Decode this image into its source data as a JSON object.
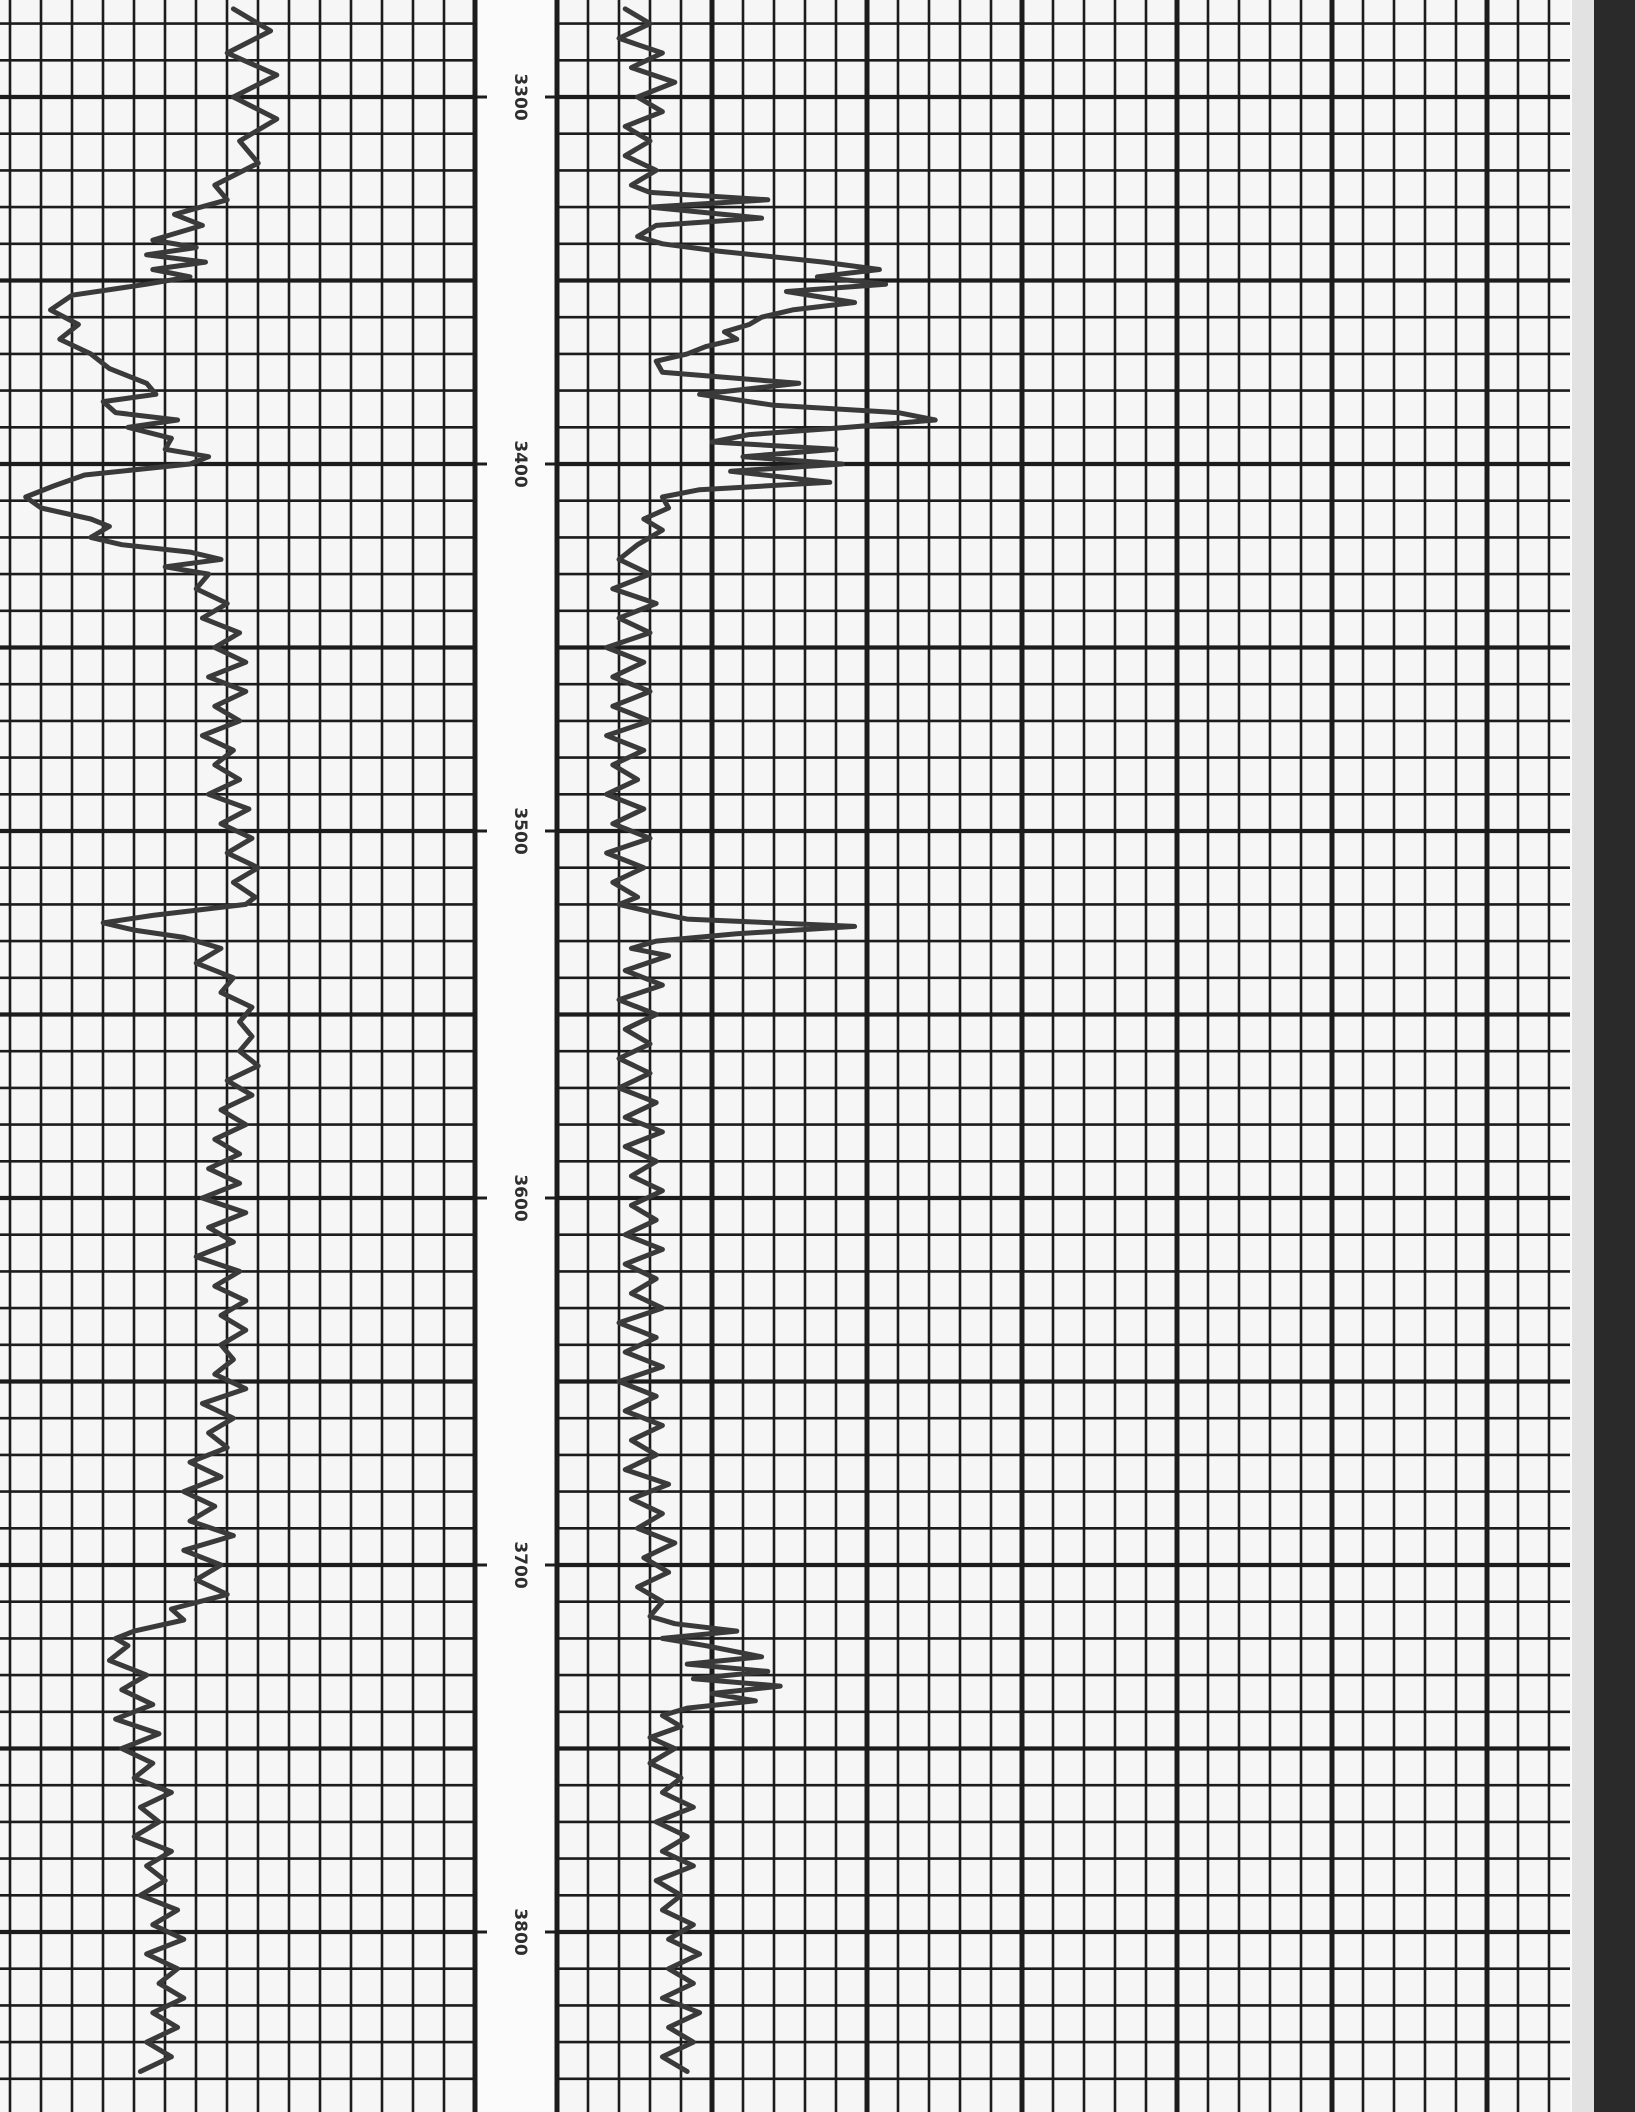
{
  "chart_data": {
    "type": "line",
    "title": "",
    "xlabel": "",
    "ylabel": "",
    "depth_axis": {
      "printed_labels": [
        "3300",
        "3400",
        "3500",
        "3600",
        "3700",
        "3800"
      ],
      "range": [
        3274,
        3840
      ],
      "orientation": "vertical, increasing downward, labels rotated"
    },
    "tracks": [
      {
        "track": "left",
        "scale_units": "grid divisions",
        "points": [
          [
            3276,
            7.4
          ],
          [
            3282,
            8.6
          ],
          [
            3288,
            7.2
          ],
          [
            3294,
            8.8
          ],
          [
            3300,
            7.4
          ],
          [
            3306,
            8.8
          ],
          [
            3312,
            7.6
          ],
          [
            3318,
            8.2
          ],
          [
            3324,
            6.8
          ],
          [
            3328,
            7.2
          ],
          [
            3332,
            5.5
          ],
          [
            3335,
            6.4
          ],
          [
            3339,
            4.8
          ],
          [
            3341,
            6.2
          ],
          [
            3343,
            4.6
          ],
          [
            3345,
            6.5
          ],
          [
            3347,
            4.8
          ],
          [
            3349,
            6.0
          ],
          [
            3351,
            4.6
          ],
          [
            3354,
            2.2
          ],
          [
            3358,
            1.5
          ],
          [
            3362,
            2.4
          ],
          [
            3366,
            1.8
          ],
          [
            3370,
            2.8
          ],
          [
            3374,
            3.4
          ],
          [
            3378,
            4.6
          ],
          [
            3381,
            4.9
          ],
          [
            3383,
            3.2
          ],
          [
            3386,
            3.6
          ],
          [
            3388,
            5.6
          ],
          [
            3390,
            4.0
          ],
          [
            3393,
            5.4
          ],
          [
            3396,
            5.2
          ],
          [
            3398,
            6.6
          ],
          [
            3400,
            6.0
          ],
          [
            3403,
            2.6
          ],
          [
            3406,
            1.6
          ],
          [
            3409,
            0.7
          ],
          [
            3412,
            1.2
          ],
          [
            3415,
            2.8
          ],
          [
            3417,
            3.4
          ],
          [
            3420,
            2.8
          ],
          [
            3422,
            3.8
          ],
          [
            3424,
            6.0
          ],
          [
            3426,
            7.0
          ],
          [
            3428,
            5.2
          ],
          [
            3430,
            6.6
          ],
          [
            3434,
            6.2
          ],
          [
            3438,
            7.2
          ],
          [
            3442,
            6.4
          ],
          [
            3446,
            7.6
          ],
          [
            3450,
            6.8
          ],
          [
            3454,
            7.8
          ],
          [
            3458,
            6.6
          ],
          [
            3462,
            7.8
          ],
          [
            3466,
            6.8
          ],
          [
            3470,
            7.6
          ],
          [
            3474,
            6.4
          ],
          [
            3478,
            7.4
          ],
          [
            3482,
            6.8
          ],
          [
            3486,
            7.6
          ],
          [
            3490,
            6.6
          ],
          [
            3494,
            7.9
          ],
          [
            3498,
            7.0
          ],
          [
            3502,
            8.0
          ],
          [
            3506,
            7.2
          ],
          [
            3510,
            8.2
          ],
          [
            3514,
            7.4
          ],
          [
            3518,
            8.1
          ],
          [
            3520,
            7.8
          ],
          [
            3523,
            4.8
          ],
          [
            3525,
            3.2
          ],
          [
            3527,
            4.2
          ],
          [
            3529,
            5.8
          ],
          [
            3532,
            7.0
          ],
          [
            3536,
            6.2
          ],
          [
            3540,
            7.4
          ],
          [
            3544,
            7.0
          ],
          [
            3548,
            8.0
          ],
          [
            3552,
            7.6
          ],
          [
            3556,
            8.0
          ],
          [
            3560,
            7.6
          ],
          [
            3564,
            8.2
          ],
          [
            3568,
            7.2
          ],
          [
            3572,
            8.0
          ],
          [
            3576,
            7.0
          ],
          [
            3580,
            7.8
          ],
          [
            3584,
            6.8
          ],
          [
            3588,
            7.6
          ],
          [
            3592,
            6.6
          ],
          [
            3596,
            7.6
          ],
          [
            3600,
            6.4
          ],
          [
            3604,
            7.8
          ],
          [
            3608,
            6.6
          ],
          [
            3612,
            7.4
          ],
          [
            3616,
            6.2
          ],
          [
            3620,
            7.6
          ],
          [
            3624,
            6.8
          ],
          [
            3628,
            7.8
          ],
          [
            3632,
            7.0
          ],
          [
            3636,
            7.8
          ],
          [
            3640,
            7.0
          ],
          [
            3644,
            7.4
          ],
          [
            3648,
            6.8
          ],
          [
            3652,
            7.8
          ],
          [
            3656,
            6.4
          ],
          [
            3660,
            7.4
          ],
          [
            3664,
            6.6
          ],
          [
            3668,
            7.2
          ],
          [
            3672,
            6.0
          ],
          [
            3676,
            7.0
          ],
          [
            3680,
            5.8
          ],
          [
            3684,
            6.8
          ],
          [
            3688,
            6.0
          ],
          [
            3692,
            7.4
          ],
          [
            3696,
            5.8
          ],
          [
            3700,
            7.0
          ],
          [
            3704,
            6.2
          ],
          [
            3708,
            7.2
          ],
          [
            3712,
            5.4
          ],
          [
            3715,
            5.8
          ],
          [
            3718,
            4.2
          ],
          [
            3720,
            3.6
          ],
          [
            3722,
            4.0
          ],
          [
            3726,
            3.4
          ],
          [
            3730,
            4.6
          ],
          [
            3734,
            3.8
          ],
          [
            3738,
            4.8
          ],
          [
            3742,
            3.6
          ],
          [
            3746,
            5.0
          ],
          [
            3750,
            3.8
          ],
          [
            3754,
            4.8
          ],
          [
            3758,
            4.2
          ],
          [
            3762,
            5.4
          ],
          [
            3766,
            4.4
          ],
          [
            3770,
            5.0
          ],
          [
            3774,
            4.2
          ],
          [
            3778,
            5.4
          ],
          [
            3782,
            4.6
          ],
          [
            3786,
            5.2
          ],
          [
            3790,
            4.4
          ],
          [
            3794,
            5.6
          ],
          [
            3798,
            4.8
          ],
          [
            3802,
            5.8
          ],
          [
            3806,
            4.6
          ],
          [
            3810,
            5.6
          ],
          [
            3814,
            5.0
          ],
          [
            3818,
            5.8
          ],
          [
            3822,
            4.8
          ],
          [
            3826,
            5.6
          ],
          [
            3830,
            4.6
          ],
          [
            3834,
            5.4
          ],
          [
            3838,
            4.4
          ]
        ]
      },
      {
        "track": "right",
        "scale_units": "grid divisions",
        "points": [
          [
            3276,
            2.2
          ],
          [
            3280,
            3.0
          ],
          [
            3284,
            2.0
          ],
          [
            3288,
            3.4
          ],
          [
            3292,
            2.4
          ],
          [
            3296,
            3.8
          ],
          [
            3300,
            2.6
          ],
          [
            3304,
            3.4
          ],
          [
            3308,
            2.2
          ],
          [
            3312,
            3.0
          ],
          [
            3316,
            2.2
          ],
          [
            3320,
            3.2
          ],
          [
            3324,
            2.4
          ],
          [
            3326,
            3.0
          ],
          [
            3328,
            6.8
          ],
          [
            3330,
            3.0
          ],
          [
            3333,
            6.6
          ],
          [
            3335,
            3.2
          ],
          [
            3338,
            2.6
          ],
          [
            3340,
            3.4
          ],
          [
            3342,
            5.2
          ],
          [
            3345,
            8.6
          ],
          [
            3347,
            10.4
          ],
          [
            3349,
            8.4
          ],
          [
            3351,
            10.6
          ],
          [
            3353,
            7.4
          ],
          [
            3356,
            9.6
          ],
          [
            3358,
            7.6
          ],
          [
            3360,
            6.6
          ],
          [
            3362,
            6.2
          ],
          [
            3364,
            5.4
          ],
          [
            3366,
            5.8
          ],
          [
            3368,
            4.8
          ],
          [
            3370,
            4.2
          ],
          [
            3372,
            3.2
          ],
          [
            3375,
            3.4
          ],
          [
            3378,
            7.8
          ],
          [
            3381,
            4.6
          ],
          [
            3384,
            7.0
          ],
          [
            3386,
            11.0
          ],
          [
            3388,
            12.2
          ],
          [
            3390,
            9.4
          ],
          [
            3392,
            6.2
          ],
          [
            3394,
            5.0
          ],
          [
            3396,
            9.0
          ],
          [
            3398,
            6.0
          ],
          [
            3400,
            9.2
          ],
          [
            3402,
            5.6
          ],
          [
            3405,
            8.8
          ],
          [
            3407,
            4.6
          ],
          [
            3409,
            3.4
          ],
          [
            3412,
            3.6
          ],
          [
            3415,
            2.8
          ],
          [
            3418,
            3.4
          ],
          [
            3422,
            2.6
          ],
          [
            3426,
            2.0
          ],
          [
            3430,
            3.0
          ],
          [
            3434,
            1.8
          ],
          [
            3438,
            3.2
          ],
          [
            3442,
            2.0
          ],
          [
            3446,
            3.0
          ],
          [
            3450,
            1.6
          ],
          [
            3454,
            2.8
          ],
          [
            3458,
            1.8
          ],
          [
            3462,
            3.0
          ],
          [
            3466,
            1.8
          ],
          [
            3470,
            3.0
          ],
          [
            3474,
            1.6
          ],
          [
            3478,
            2.8
          ],
          [
            3482,
            1.8
          ],
          [
            3486,
            2.6
          ],
          [
            3490,
            1.6
          ],
          [
            3494,
            2.8
          ],
          [
            3498,
            1.8
          ],
          [
            3502,
            3.0
          ],
          [
            3506,
            1.6
          ],
          [
            3510,
            2.8
          ],
          [
            3514,
            1.8
          ],
          [
            3518,
            2.6
          ],
          [
            3520,
            2.0
          ],
          [
            3522,
            3.0
          ],
          [
            3524,
            4.2
          ],
          [
            3526,
            9.6
          ],
          [
            3528,
            5.8
          ],
          [
            3530,
            3.2
          ],
          [
            3532,
            2.4
          ],
          [
            3534,
            3.6
          ],
          [
            3538,
            2.2
          ],
          [
            3542,
            3.4
          ],
          [
            3546,
            2.0
          ],
          [
            3550,
            3.2
          ],
          [
            3554,
            2.2
          ],
          [
            3558,
            3.0
          ],
          [
            3562,
            2.0
          ],
          [
            3566,
            3.0
          ],
          [
            3570,
            2.0
          ],
          [
            3574,
            3.2
          ],
          [
            3578,
            2.2
          ],
          [
            3582,
            3.4
          ],
          [
            3586,
            2.2
          ],
          [
            3590,
            3.2
          ],
          [
            3594,
            2.4
          ],
          [
            3598,
            3.4
          ],
          [
            3602,
            2.4
          ],
          [
            3606,
            3.2
          ],
          [
            3610,
            2.2
          ],
          [
            3614,
            3.4
          ],
          [
            3618,
            2.2
          ],
          [
            3622,
            3.2
          ],
          [
            3626,
            2.4
          ],
          [
            3630,
            3.4
          ],
          [
            3634,
            2.0
          ],
          [
            3638,
            3.2
          ],
          [
            3642,
            2.2
          ],
          [
            3646,
            3.4
          ],
          [
            3650,
            2.0
          ],
          [
            3654,
            3.2
          ],
          [
            3658,
            2.2
          ],
          [
            3662,
            3.4
          ],
          [
            3666,
            2.4
          ],
          [
            3670,
            3.2
          ],
          [
            3674,
            2.2
          ],
          [
            3678,
            3.6
          ],
          [
            3682,
            2.4
          ],
          [
            3686,
            3.4
          ],
          [
            3690,
            2.6
          ],
          [
            3694,
            3.8
          ],
          [
            3698,
            2.8
          ],
          [
            3702,
            3.6
          ],
          [
            3706,
            2.6
          ],
          [
            3710,
            3.4
          ],
          [
            3714,
            3.0
          ],
          [
            3716,
            3.8
          ],
          [
            3718,
            5.8
          ],
          [
            3720,
            3.4
          ],
          [
            3722,
            4.8
          ],
          [
            3725,
            6.6
          ],
          [
            3727,
            4.2
          ],
          [
            3729,
            6.8
          ],
          [
            3731,
            4.4
          ],
          [
            3733,
            7.2
          ],
          [
            3735,
            5.0
          ],
          [
            3737,
            6.4
          ],
          [
            3739,
            4.2
          ],
          [
            3741,
            3.4
          ],
          [
            3744,
            4.0
          ],
          [
            3747,
            3.0
          ],
          [
            3750,
            3.8
          ],
          [
            3754,
            3.0
          ],
          [
            3758,
            4.0
          ],
          [
            3762,
            3.4
          ],
          [
            3766,
            4.4
          ],
          [
            3770,
            3.2
          ],
          [
            3774,
            4.2
          ],
          [
            3778,
            3.4
          ],
          [
            3782,
            4.4
          ],
          [
            3786,
            3.2
          ],
          [
            3790,
            4.0
          ],
          [
            3794,
            3.4
          ],
          [
            3798,
            4.4
          ],
          [
            3802,
            3.6
          ],
          [
            3806,
            4.6
          ],
          [
            3810,
            3.6
          ],
          [
            3814,
            4.4
          ],
          [
            3818,
            3.4
          ],
          [
            3822,
            4.6
          ],
          [
            3826,
            3.6
          ],
          [
            3830,
            4.4
          ],
          [
            3834,
            3.4
          ],
          [
            3838,
            4.2
          ]
        ]
      }
    ]
  }
}
